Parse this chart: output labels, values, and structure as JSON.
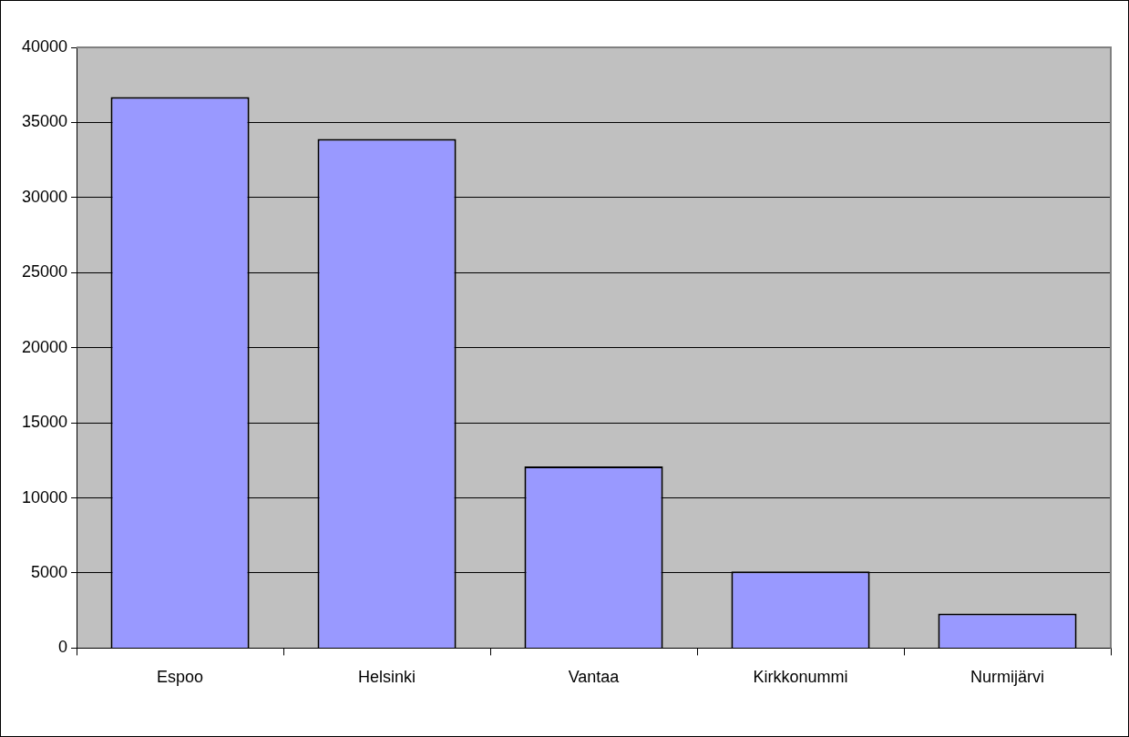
{
  "chart_data": {
    "type": "bar",
    "categories": [
      "Espoo",
      "Helsinki",
      "Vantaa",
      "Kirkkonummi",
      "Nurmijärvi"
    ],
    "values": [
      36700,
      33900,
      12100,
      5100,
      2300
    ],
    "color": "#9999ff",
    "ylim": [
      0,
      40000
    ],
    "yticks": [
      0,
      5000,
      10000,
      15000,
      20000,
      25000,
      30000,
      35000,
      40000
    ],
    "grid": "y",
    "legend": false
  }
}
